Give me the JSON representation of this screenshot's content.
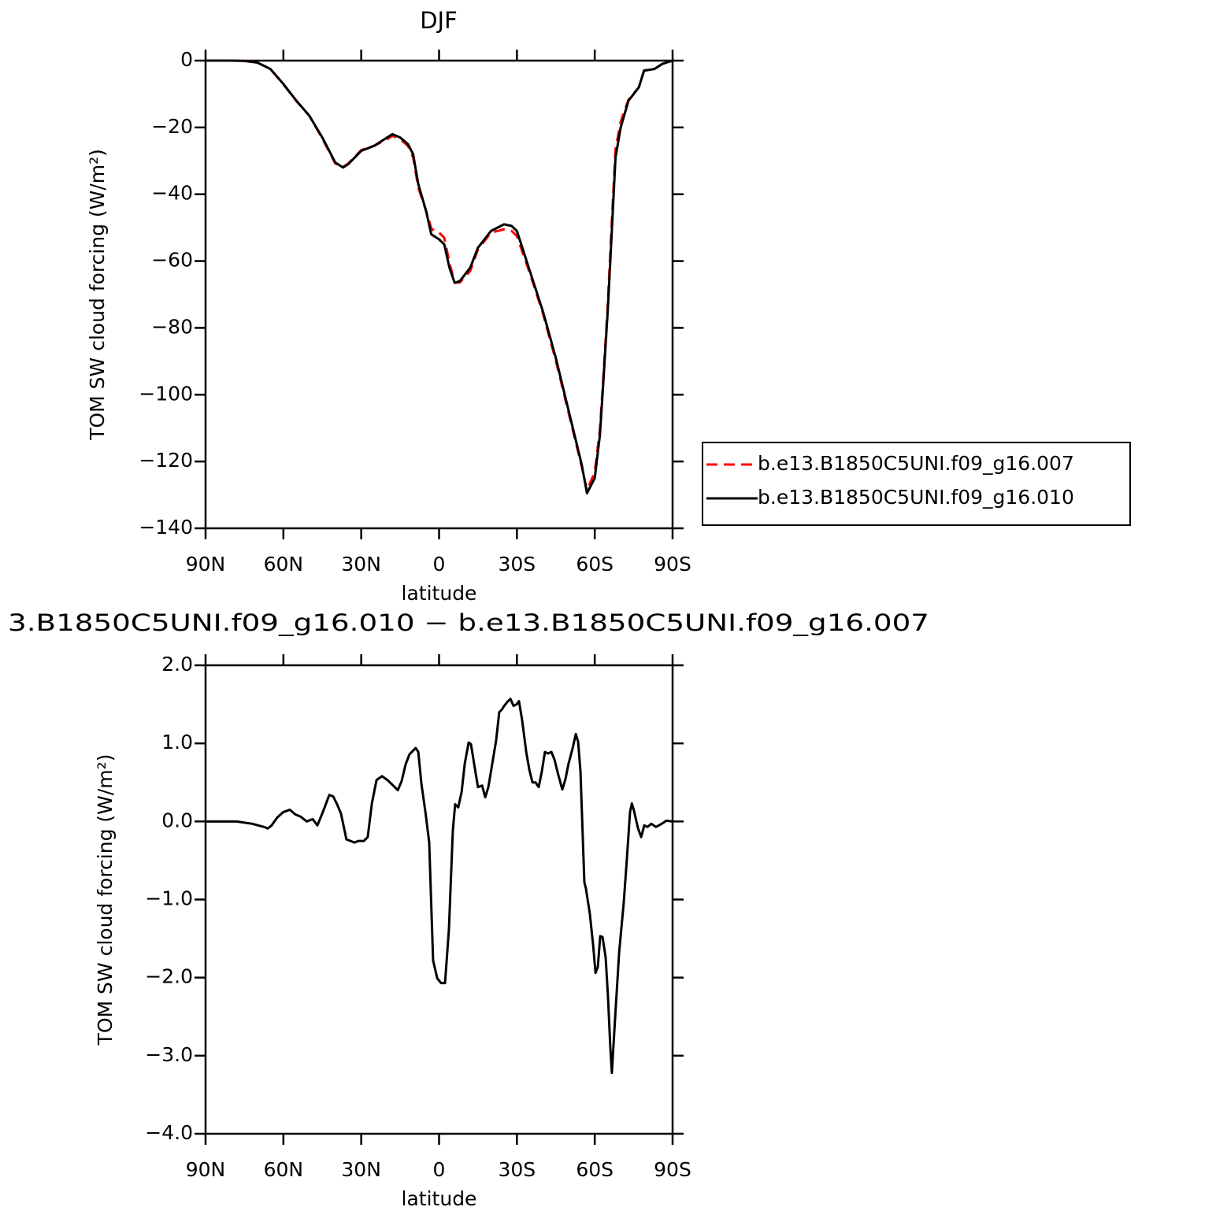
{
  "chart_data": [
    {
      "type": "line",
      "title": "DJF",
      "x_label": "latitude",
      "y_label": "TOM SW cloud forcing (W/m²)",
      "x": [
        90,
        85,
        80,
        75,
        70,
        65,
        60,
        55,
        50,
        45,
        40,
        37,
        35,
        30,
        25,
        20,
        18,
        15,
        12,
        10,
        8,
        5,
        3,
        1,
        0,
        -2,
        -4,
        -6,
        -8,
        -10,
        -12,
        -15,
        -20,
        -25,
        -28,
        -30,
        -35,
        -40,
        -45,
        -50,
        -55,
        -57,
        -60,
        -62,
        -63,
        -65,
        -66,
        -68,
        -70,
        -73,
        -77,
        -79,
        -83,
        -86,
        -90
      ],
      "series": [
        {
          "name": "b.e13.B1850C5UNI.f09_g16.007",
          "color": "#ff0000",
          "linestyle": "dashed",
          "values": [
            0,
            0,
            0,
            -0.1,
            -0.6,
            -2.5,
            -7.1,
            -12.1,
            -16.5,
            -23.3,
            -30.8,
            -31.8,
            -30.8,
            -26.8,
            -25.5,
            -23.5,
            -22.5,
            -23.5,
            -25.5,
            -29,
            -38,
            -45,
            -50.2,
            -51.5,
            -51.5,
            -53,
            -60.5,
            -66.5,
            -66.4,
            -64.7,
            -63,
            -56.5,
            -51.5,
            -50.5,
            -51,
            -52.5,
            -63.7,
            -75.6,
            -89.8,
            -105.7,
            -121.6,
            -128.6,
            -123.2,
            -110.3,
            -98.5,
            -73.3,
            -57.1,
            -26.5,
            -18.3,
            -11.7,
            -8,
            -2.95,
            -2.5,
            -1,
            0
          ]
        },
        {
          "name": "b.e13.B1850C5UNI.f09_g16.010",
          "color": "#000000",
          "linestyle": "solid",
          "values": [
            0,
            0,
            0,
            -0.1,
            -0.6,
            -2.5,
            -7,
            -12,
            -16.5,
            -23,
            -30.5,
            -32,
            -31,
            -27,
            -25.5,
            -23,
            -22,
            -23,
            -25,
            -28,
            -37,
            -45,
            -52,
            -53,
            -53.5,
            -55,
            -62,
            -66.5,
            -66,
            -64,
            -62,
            -56,
            -51,
            -49,
            -49.5,
            -51,
            -63,
            -75,
            -89,
            -105,
            -121,
            -129.5,
            -125,
            -112,
            -100,
            -75,
            -60,
            -29,
            -20,
            -12,
            -8,
            -3,
            -2.5,
            -1,
            0
          ]
        }
      ],
      "xlim": [
        90,
        -90
      ],
      "xticks": [
        {
          "value": 90,
          "label": "90N"
        },
        {
          "value": 60,
          "label": "60N"
        },
        {
          "value": 30,
          "label": "30N"
        },
        0,
        {
          "value": -30,
          "label": "30S"
        },
        {
          "value": -60,
          "label": "60S"
        },
        {
          "value": -90,
          "label": "90S"
        }
      ],
      "ylim": [
        -140,
        0
      ],
      "yticks": [
        0,
        {
          "value": -20,
          "label": "−20"
        },
        {
          "value": -40,
          "label": "−40"
        },
        {
          "value": -60,
          "label": "−60"
        },
        {
          "value": -80,
          "label": "−80"
        },
        {
          "value": -100,
          "label": "−100"
        },
        {
          "value": -120,
          "label": "−120"
        },
        {
          "value": -140,
          "label": "−140"
        }
      ],
      "legend": "right"
    },
    {
      "type": "line",
      "title": "3.B1850C5UNI.f09_g16.010 − b.e13.B1850C5UNI.f09_g16.007",
      "x_label": "latitude",
      "y_label": "TOM SW cloud forcing (W/m²)",
      "x": [
        90,
        78,
        72,
        67.5,
        66,
        64.5,
        62.4,
        60,
        57.5,
        55.4,
        53.3,
        51,
        48.7,
        46.9,
        44.8,
        42.3,
        40.8,
        39.3,
        37.8,
        35.7,
        34.1,
        32.6,
        31.1,
        29,
        27.5,
        25.9,
        24.1,
        22,
        19.9,
        18,
        15.9,
        14.4,
        12.9,
        11.4,
        9.9,
        9,
        8,
        6.8,
        5.3,
        3.8,
        2.3,
        0.7,
        -0.8,
        -2.3,
        -3.8,
        -5.3,
        -6.2,
        -7.4,
        -8.7,
        -9.9,
        -11.4,
        -12.3,
        -13.5,
        -15,
        -16.6,
        -17.8,
        -19,
        -20.5,
        -22,
        -23.2,
        -24.1,
        -25.1,
        -26.3,
        -27.5,
        -28.7,
        -29.9,
        -30.8,
        -32,
        -33.6,
        -34.8,
        -36,
        -37.2,
        -38.4,
        -39.6,
        -40.8,
        -42,
        -43.3,
        -44.5,
        -46,
        -47.5,
        -48.7,
        -49.9,
        -51.5,
        -52.7,
        -53.6,
        -54.5,
        -56,
        -56.6,
        -58.1,
        -59.4,
        -60.3,
        -61.2,
        -62.1,
        -63,
        -64.2,
        -65.1,
        -66,
        -66.6,
        -67.9,
        -69.4,
        -71.2,
        -72.4,
        -73.6,
        -74.3,
        -75.1,
        -76.7,
        -77.9,
        -79.1,
        -80.3,
        -81.8,
        -83.6,
        -85.8,
        -87.6,
        -90
      ],
      "values": [
        0,
        0,
        -0.03,
        -0.07,
        -0.09,
        -0.05,
        0.05,
        0.12,
        0.15,
        0.09,
        0.06,
        0,
        0.03,
        -0.05,
        0.12,
        0.34,
        0.32,
        0.22,
        0.1,
        -0.23,
        -0.25,
        -0.27,
        -0.25,
        -0.25,
        -0.2,
        0.23,
        0.53,
        0.58,
        0.53,
        0.47,
        0.4,
        0.52,
        0.73,
        0.86,
        0.91,
        0.94,
        0.89,
        0.48,
        0.13,
        -0.27,
        -1.78,
        -2.01,
        -2.07,
        -2.07,
        -1.38,
        -0.12,
        0.22,
        0.18,
        0.38,
        0.74,
        1.01,
        0.99,
        0.74,
        0.44,
        0.46,
        0.31,
        0.44,
        0.74,
        1.04,
        1.4,
        1.43,
        1.48,
        1.53,
        1.57,
        1.48,
        1.5,
        1.54,
        1.3,
        0.89,
        0.66,
        0.5,
        0.5,
        0.44,
        0.64,
        0.89,
        0.87,
        0.89,
        0.79,
        0.59,
        0.41,
        0.54,
        0.74,
        0.94,
        1.12,
        1.02,
        0.64,
        -0.78,
        -0.86,
        -1.18,
        -1.59,
        -1.94,
        -1.86,
        -1.47,
        -1.48,
        -1.74,
        -2.24,
        -2.89,
        -3.22,
        -2.49,
        -1.68,
        -1.03,
        -0.47,
        0.12,
        0.23,
        0.14,
        -0.09,
        -0.2,
        -0.05,
        -0.07,
        -0.03,
        -0.07,
        -0.03,
        0.01,
        0
      ],
      "color": "#000000",
      "xlim": [
        90,
        -90
      ],
      "xticks": [
        {
          "value": 90,
          "label": "90N"
        },
        {
          "value": 60,
          "label": "60N"
        },
        {
          "value": 30,
          "label": "30N"
        },
        0,
        {
          "value": -30,
          "label": "30S"
        },
        {
          "value": -60,
          "label": "60S"
        },
        {
          "value": -90,
          "label": "90S"
        }
      ],
      "ylim": [
        -4,
        2
      ],
      "yticks": [
        {
          "value": 2,
          "label": "2.0"
        },
        {
          "value": 1,
          "label": "1.0"
        },
        {
          "value": 0,
          "label": "0.0"
        },
        {
          "value": -1,
          "label": "−1.0"
        },
        {
          "value": -2,
          "label": "−2.0"
        },
        {
          "value": -3,
          "label": "−3.0"
        },
        {
          "value": -4,
          "label": "−4.0"
        }
      ]
    }
  ]
}
